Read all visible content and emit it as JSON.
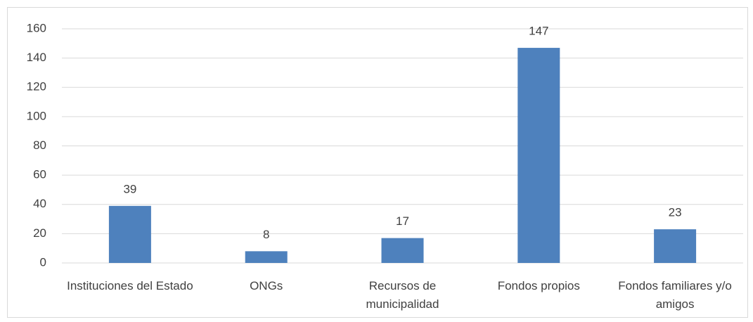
{
  "chart_data": {
    "type": "bar",
    "categories": [
      "Instituciones del Estado",
      "ONGs",
      "Recursos de municipalidad",
      "Fondos propios",
      "Fondos familiares y/o amigos"
    ],
    "values": [
      39,
      8,
      17,
      147,
      23
    ],
    "color": "#4e81bd",
    "ylim": [
      0,
      160
    ],
    "yticks": [
      0,
      20,
      40,
      60,
      80,
      100,
      120,
      140,
      160
    ],
    "grid": true
  }
}
